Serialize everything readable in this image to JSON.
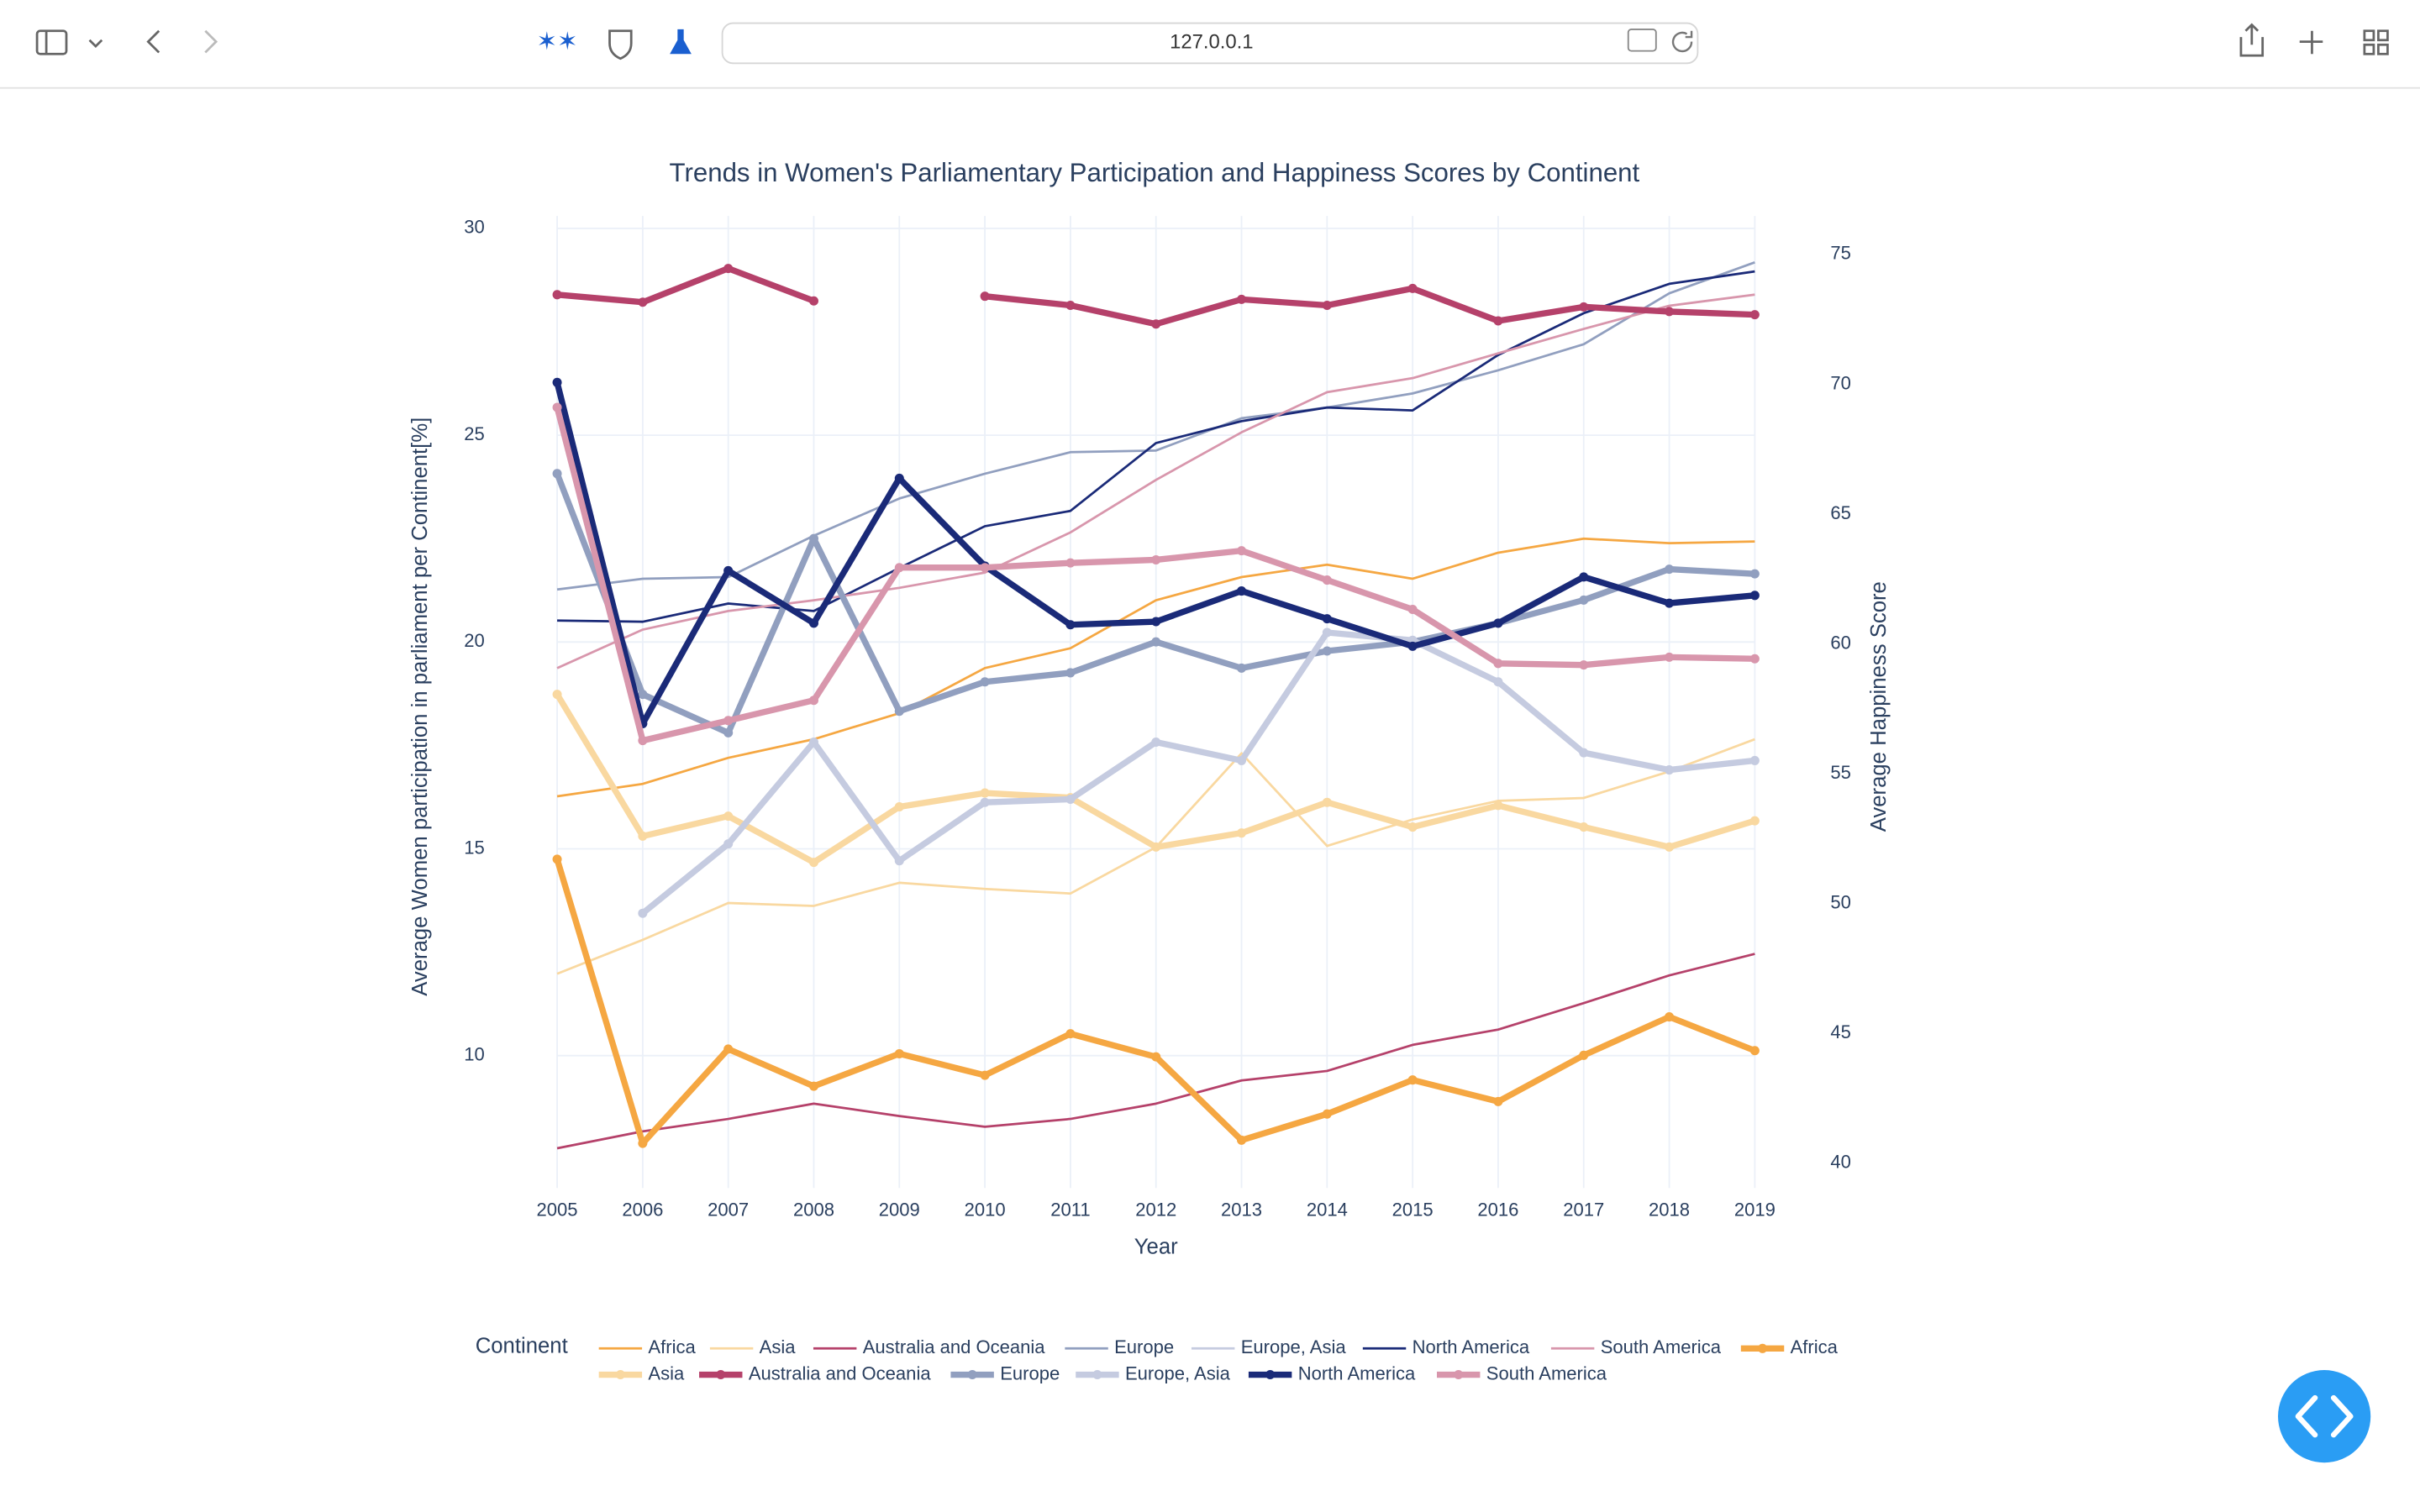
{
  "browser": {
    "url": "127.0.0.1"
  },
  "chart_data": {
    "type": "line",
    "title": "Trends in Women's Parliamentary Participation and Happiness Scores by Continent",
    "x_label": "Year",
    "y_label": "Average Women participation in parliament per Continent[%]",
    "y2_label": "Average Happiness Score",
    "legend_title": "Continent",
    "legend_position": "bottom",
    "grid": true,
    "x": [
      2005,
      2006,
      2007,
      2008,
      2009,
      2010,
      2011,
      2012,
      2013,
      2014,
      2015,
      2016,
      2017,
      2018,
      2019
    ],
    "xlim": [
      2005,
      2019
    ],
    "xticks": [
      2005,
      2006,
      2007,
      2008,
      2009,
      2010,
      2011,
      2012,
      2013,
      2014,
      2015,
      2016,
      2017,
      2018,
      2019
    ],
    "ylim": [
      6.8,
      30.3
    ],
    "yticks": [
      10,
      15,
      20,
      25,
      30
    ],
    "y2lim": [
      39.05,
      76.48
    ],
    "y2ticks": [
      40,
      45,
      50,
      55,
      60,
      65,
      70,
      75
    ],
    "series": [
      {
        "name": "Africa",
        "color": "#f5a742",
        "mode": "lines",
        "values": [
          16.27,
          16.57,
          17.2,
          17.65,
          18.28,
          19.37,
          19.85,
          21.01,
          21.57,
          21.87,
          21.53,
          22.16,
          22.5,
          22.39,
          22.43
        ]
      },
      {
        "name": "Asia",
        "color": "#f9d8a0",
        "mode": "lines",
        "values": [
          11.98,
          12.8,
          13.69,
          13.62,
          14.18,
          14.03,
          13.92,
          15.04,
          17.31,
          15.07,
          15.71,
          16.16,
          16.23,
          16.87,
          17.65
        ]
      },
      {
        "name": "Australia and Oceania",
        "color": "#b5416a",
        "mode": "lines",
        "values": [
          7.76,
          8.17,
          8.47,
          8.84,
          8.54,
          8.28,
          8.47,
          8.84,
          9.4,
          9.63,
          10.26,
          10.63,
          11.27,
          11.94,
          12.46
        ]
      },
      {
        "name": "Europe",
        "color": "#919fbf",
        "mode": "lines",
        "values": [
          21.27,
          21.53,
          21.57,
          22.57,
          23.47,
          24.07,
          24.59,
          24.63,
          25.41,
          25.67,
          26.01,
          26.57,
          27.2,
          28.43,
          29.18
        ]
      },
      {
        "name": "Europe, Asia",
        "color": "#c5cbe0",
        "mode": "lines",
        "values": [
          null,
          null,
          null,
          null,
          null,
          null,
          null,
          null,
          null,
          null,
          null,
          null,
          null,
          null,
          null
        ]
      },
      {
        "name": "North America",
        "color": "#1a2a78",
        "mode": "lines",
        "values": [
          20.52,
          20.49,
          20.93,
          20.75,
          21.79,
          22.8,
          23.17,
          24.81,
          25.34,
          25.67,
          25.6,
          26.94,
          27.95,
          28.66,
          28.96
        ]
      },
      {
        "name": "South America",
        "color": "#d896ac",
        "mode": "lines",
        "values": [
          19.37,
          20.3,
          20.75,
          21.01,
          21.31,
          21.68,
          22.65,
          23.92,
          25.07,
          26.04,
          26.38,
          26.98,
          27.57,
          28.13,
          28.4
        ]
      },
      {
        "name": "Africa",
        "color": "#f5a742",
        "mode": "lines+markers",
        "axis": "y2",
        "values": [
          51.71,
          40.77,
          44.4,
          42.97,
          44.22,
          43.39,
          44.99,
          44.1,
          40.89,
          41.9,
          43.21,
          42.38,
          44.16,
          45.64,
          44.34
        ]
      },
      {
        "name": "Asia",
        "color": "#f9d8a0",
        "mode": "lines+markers",
        "axis": "y2",
        "values": [
          58.06,
          52.6,
          53.37,
          51.59,
          53.73,
          54.26,
          54.08,
          52.18,
          52.72,
          53.9,
          52.95,
          53.78,
          52.95,
          52.18,
          53.19
        ]
      },
      {
        "name": "Australia and Oceania",
        "color": "#b5416a",
        "mode": "lines+markers",
        "axis": "y2",
        "values": [
          73.45,
          73.16,
          74.46,
          73.21,
          null,
          73.39,
          73.04,
          72.32,
          73.27,
          73.04,
          73.69,
          72.44,
          72.98,
          72.8,
          72.68
        ]
      },
      {
        "name": "Europe",
        "color": "#919fbf",
        "mode": "lines+markers",
        "axis": "y2",
        "values": [
          66.56,
          58.06,
          56.58,
          64.06,
          57.41,
          58.54,
          58.89,
          60.08,
          59.07,
          59.73,
          60.08,
          60.8,
          61.69,
          62.88,
          62.7
        ]
      },
      {
        "name": "Europe, Asia",
        "color": "#c5cbe0",
        "mode": "lines+markers",
        "axis": "y2",
        "values": [
          null,
          49.63,
          52.3,
          56.22,
          51.65,
          53.9,
          54.02,
          56.22,
          55.51,
          60.44,
          60.14,
          58.54,
          55.81,
          55.15,
          55.51
        ]
      },
      {
        "name": "North America",
        "color": "#1a2a78",
        "mode": "lines+markers",
        "axis": "y2",
        "values": [
          70.07,
          56.93,
          62.82,
          60.8,
          66.38,
          63.0,
          60.74,
          60.86,
          62.04,
          60.97,
          59.91,
          60.8,
          62.58,
          61.57,
          61.87
        ]
      },
      {
        "name": "South America",
        "color": "#d896ac",
        "mode": "lines+markers",
        "axis": "y2",
        "values": [
          69.11,
          56.28,
          57.05,
          57.83,
          62.94,
          62.94,
          63.12,
          63.24,
          63.59,
          62.46,
          61.33,
          59.25,
          59.19,
          59.49,
          59.43
        ]
      }
    ]
  }
}
